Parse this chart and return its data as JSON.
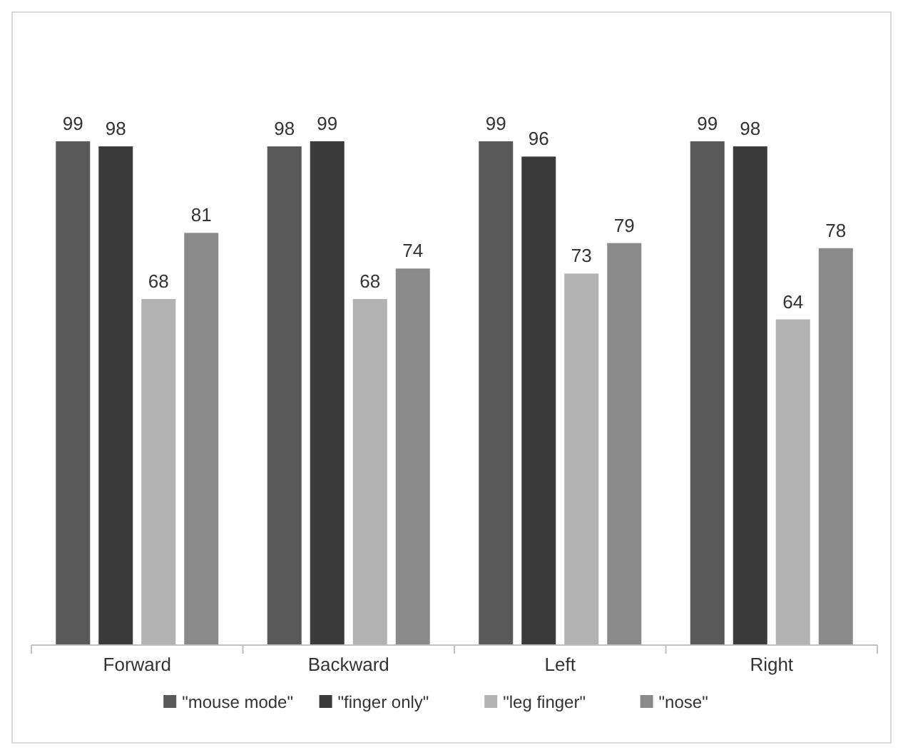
{
  "chart_data": {
    "type": "bar",
    "categories": [
      "Forward",
      "Backward",
      "Left",
      "Right"
    ],
    "series": [
      {
        "name": "\"mouse mode\"",
        "color": "#595959",
        "values": [
          99,
          98,
          99,
          99
        ]
      },
      {
        "name": "\"finger only\"",
        "color": "#3a3a3a",
        "values": [
          98,
          99,
          96,
          98
        ]
      },
      {
        "name": "\"leg finger\"",
        "color": "#b2b2b2",
        "values": [
          68,
          68,
          73,
          64
        ]
      },
      {
        "name": "\"nose\"",
        "color": "#8a8a8a",
        "values": [
          81,
          74,
          79,
          78
        ]
      }
    ],
    "data_labels": true,
    "legend": "bottom",
    "grid": false
  }
}
